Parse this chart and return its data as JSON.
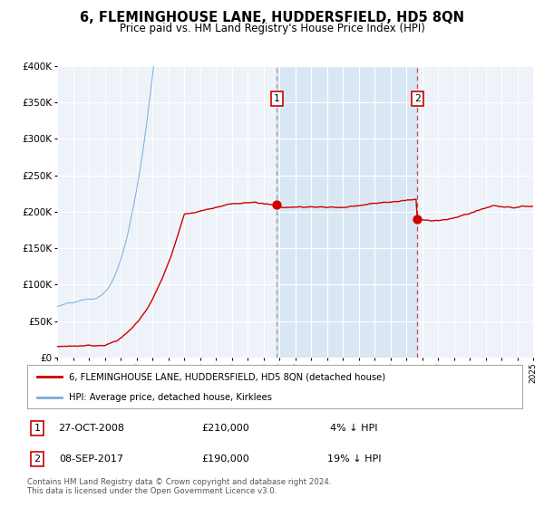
{
  "title": "6, FLEMINGHOUSE LANE, HUDDERSFIELD, HD5 8QN",
  "subtitle": "Price paid vs. HM Land Registry's House Price Index (HPI)",
  "background_color": "#ffffff",
  "plot_bg_color": "#eef3fa",
  "grid_color": "#c8d0dc",
  "hpi_color": "#7aaadd",
  "price_color": "#cc0000",
  "ylim": [
    0,
    400000
  ],
  "yticks": [
    0,
    50000,
    100000,
    150000,
    200000,
    250000,
    300000,
    350000,
    400000
  ],
  "ytick_labels": [
    "£0",
    "£50K",
    "£100K",
    "£150K",
    "£200K",
    "£250K",
    "£300K",
    "£350K",
    "£400K"
  ],
  "sale1_year": 2008.83,
  "sale1_price": 210000,
  "sale2_year": 2017.69,
  "sale2_price": 190000,
  "legend_house_label": "6, FLEMINGHOUSE LANE, HUDDERSFIELD, HD5 8QN (detached house)",
  "legend_hpi_label": "HPI: Average price, detached house, Kirklees",
  "note1_label": "1",
  "note1_date": "27-OCT-2008",
  "note1_price": "£210,000",
  "note1_hpi": "4% ↓ HPI",
  "note2_label": "2",
  "note2_date": "08-SEP-2017",
  "note2_price": "£190,000",
  "note2_hpi": "19% ↓ HPI",
  "footer": "Contains HM Land Registry data © Crown copyright and database right 2024.\nThis data is licensed under the Open Government Licence v3.0.",
  "xmin": 1995,
  "xmax": 2025
}
